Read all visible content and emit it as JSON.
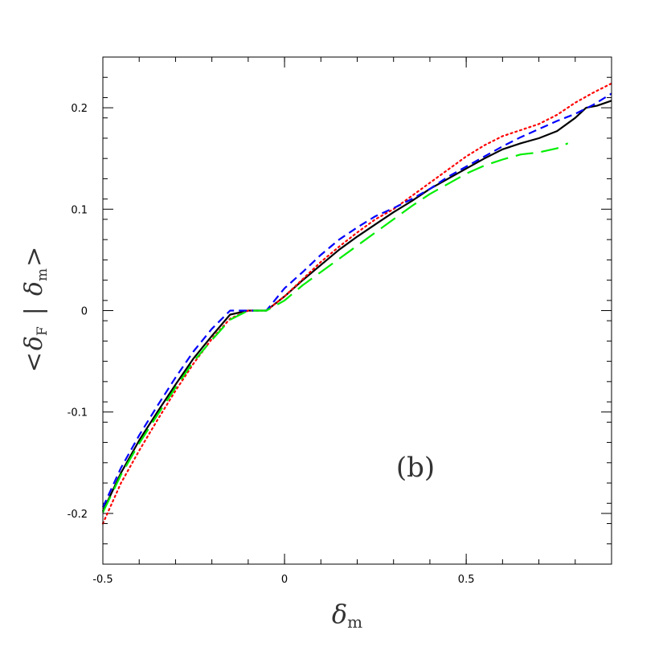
{
  "chart_data": {
    "type": "line",
    "xlabel": {
      "symbol": "δ",
      "sub": "m"
    },
    "ylabel": {
      "open": "<",
      "symbol1": "δ",
      "sub1": "F",
      "bar": "|",
      "symbol2": "δ",
      "sub2": "m",
      "close": ">"
    },
    "annotation": "(b)",
    "xlim": [
      -0.5,
      0.9
    ],
    "ylim": [
      -0.25,
      0.25
    ],
    "grid": false,
    "xticks": [
      {
        "value": -0.5,
        "label": "-0.5"
      },
      {
        "value": 0,
        "label": "0"
      },
      {
        "value": 0.5,
        "label": "0.5"
      }
    ],
    "yticks": [
      {
        "value": -0.2,
        "label": "-0.2"
      },
      {
        "value": -0.1,
        "label": "-0.1"
      },
      {
        "value": 0,
        "label": "0"
      },
      {
        "value": 0.1,
        "label": "0.1"
      },
      {
        "value": 0.2,
        "label": "0.2"
      }
    ],
    "series": [
      {
        "color": "#000000",
        "dash": "solid",
        "width": 2.2,
        "x": [
          -0.5,
          -0.45,
          -0.4,
          -0.35,
          -0.3,
          -0.25,
          -0.2,
          -0.15,
          -0.1,
          -0.05,
          0.0,
          0.05,
          0.1,
          0.15,
          0.2,
          0.25,
          0.3,
          0.35,
          0.4,
          0.45,
          0.5,
          0.55,
          0.6,
          0.65,
          0.7,
          0.75,
          0.8,
          0.83,
          0.86,
          0.9
        ],
        "y": [
          -0.198,
          -0.16,
          -0.128,
          -0.1,
          -0.073,
          -0.047,
          -0.025,
          -0.004,
          0.0,
          0.0,
          0.014,
          0.03,
          0.045,
          0.06,
          0.073,
          0.085,
          0.097,
          0.108,
          0.12,
          0.13,
          0.14,
          0.15,
          0.159,
          0.165,
          0.17,
          0.177,
          0.19,
          0.2,
          0.202,
          0.207
        ]
      },
      {
        "color": "#ff0000",
        "dash": "dotted",
        "width": 2.2,
        "x": [
          -0.5,
          -0.45,
          -0.4,
          -0.35,
          -0.3,
          -0.25,
          -0.2,
          -0.15,
          -0.1,
          -0.05,
          0.0,
          0.05,
          0.1,
          0.15,
          0.2,
          0.25,
          0.3,
          0.35,
          0.4,
          0.45,
          0.5,
          0.55,
          0.6,
          0.65,
          0.7,
          0.75,
          0.8,
          0.85,
          0.9
        ],
        "y": [
          -0.21,
          -0.17,
          -0.138,
          -0.108,
          -0.079,
          -0.052,
          -0.028,
          -0.008,
          0.0,
          0.0,
          0.014,
          0.031,
          0.048,
          0.063,
          0.077,
          0.09,
          0.1,
          0.113,
          0.126,
          0.139,
          0.152,
          0.163,
          0.172,
          0.178,
          0.184,
          0.193,
          0.205,
          0.215,
          0.224
        ]
      },
      {
        "color": "#0000ff",
        "dash": "short-dash",
        "width": 2.2,
        "x": [
          -0.5,
          -0.45,
          -0.4,
          -0.35,
          -0.3,
          -0.25,
          -0.2,
          -0.15,
          -0.1,
          -0.05,
          0.0,
          0.05,
          0.1,
          0.15,
          0.2,
          0.25,
          0.3,
          0.35,
          0.4,
          0.45,
          0.5,
          0.55,
          0.6,
          0.65,
          0.7,
          0.75,
          0.8,
          0.85,
          0.9
        ],
        "y": [
          -0.194,
          -0.155,
          -0.123,
          -0.094,
          -0.066,
          -0.04,
          -0.018,
          0.0,
          0.0,
          0.0,
          0.022,
          0.038,
          0.055,
          0.07,
          0.082,
          0.093,
          0.101,
          0.11,
          0.12,
          0.132,
          0.142,
          0.152,
          0.162,
          0.171,
          0.179,
          0.187,
          0.194,
          0.203,
          0.214
        ]
      },
      {
        "color": "#00ee00",
        "dash": "long-dash",
        "width": 2.2,
        "x": [
          -0.5,
          -0.45,
          -0.4,
          -0.35,
          -0.3,
          -0.25,
          -0.2,
          -0.15,
          -0.1,
          -0.05,
          0.0,
          0.05,
          0.1,
          0.15,
          0.2,
          0.25,
          0.3,
          0.35,
          0.4,
          0.45,
          0.5,
          0.55,
          0.6,
          0.65,
          0.7,
          0.75,
          0.78
        ],
        "y": [
          -0.199,
          -0.162,
          -0.131,
          -0.103,
          -0.076,
          -0.05,
          -0.029,
          -0.009,
          0.0,
          0.0,
          0.01,
          0.025,
          0.038,
          0.051,
          0.064,
          0.077,
          0.09,
          0.103,
          0.115,
          0.125,
          0.135,
          0.143,
          0.149,
          0.154,
          0.156,
          0.16,
          0.165
        ]
      }
    ]
  }
}
